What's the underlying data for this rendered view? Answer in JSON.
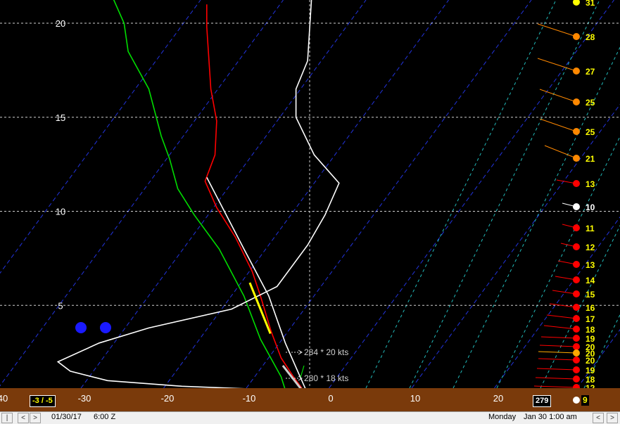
{
  "chart_data": {
    "type": "line",
    "title": "",
    "xlabel": "",
    "ylabel": "",
    "xlim": [
      -40,
      30
    ],
    "ylim": [
      0.5,
      21
    ],
    "x_ticks": [
      "40",
      "-30",
      "-20",
      "-10",
      "0",
      "10",
      "20"
    ],
    "y_ticks": [
      20,
      15,
      10,
      5
    ],
    "grid": true,
    "series": [
      {
        "name": "",
        "color": "#ff0000",
        "points": [
          [
            -15,
            21.0
          ],
          [
            -15,
            19.8
          ],
          [
            -14.5,
            16.5
          ],
          [
            -13.8,
            14.8
          ],
          [
            -14.0,
            13.0
          ],
          [
            -15.2,
            11.6
          ],
          [
            -13.8,
            10.2
          ],
          [
            -11.5,
            8.6
          ],
          [
            -9.5,
            6.8
          ],
          [
            -8.5,
            5.5
          ],
          [
            -7.2,
            3.6
          ],
          [
            -6.0,
            2.2
          ],
          [
            -4.5,
            1.2
          ],
          [
            -3.5,
            0.6
          ]
        ]
      },
      {
        "name": "",
        "color": "#00dd00",
        "points": [
          [
            -26.5,
            21.5
          ],
          [
            -25,
            20.0
          ],
          [
            -24.5,
            18.5
          ],
          [
            -22,
            16.5
          ],
          [
            -20.5,
            14.0
          ],
          [
            -19.5,
            12.8
          ],
          [
            -18.5,
            11.2
          ],
          [
            -16.5,
            9.8
          ],
          [
            -13.5,
            8.0
          ],
          [
            -10.5,
            5.5
          ],
          [
            -8.5,
            3.2
          ],
          [
            -6.0,
            1.2
          ],
          [
            -5.5,
            0.5
          ]
        ]
      },
      {
        "name": "",
        "color": "#ffffff",
        "points": [
          [
            -2.3,
            21.5
          ],
          [
            -2.8,
            18.0
          ],
          [
            -4.2,
            16.5
          ],
          [
            -4.2,
            15.0
          ],
          [
            -2.0,
            13.0
          ],
          [
            1.0,
            11.5
          ],
          [
            -0.7,
            9.8
          ],
          [
            -2.8,
            8.2
          ],
          [
            -6.5,
            6.0
          ],
          [
            -12,
            4.8
          ],
          [
            -22,
            3.8
          ],
          [
            -28,
            3.0
          ],
          [
            -33,
            2.0
          ],
          [
            -31.5,
            1.5
          ],
          [
            -27,
            1.0
          ],
          [
            -18,
            0.7
          ],
          [
            -6.5,
            0.5
          ]
        ]
      },
      {
        "name": "",
        "color": "#ffffff",
        "points": [
          [
            -15,
            11.8
          ],
          [
            -10.5,
            8.0
          ],
          [
            -7.5,
            5.5
          ],
          [
            -5.5,
            3.0
          ],
          [
            -4,
            1.5
          ],
          [
            -3,
            0.5
          ]
        ]
      },
      {
        "name": "",
        "color": "#ffff00",
        "points": [
          [
            -9.8,
            6.2
          ],
          [
            -7.3,
            3.5
          ]
        ]
      },
      {
        "name": "",
        "color": "#cccccc",
        "points": [
          [
            -5.8,
            1.8
          ],
          [
            -3.5,
            0.5
          ]
        ]
      }
    ],
    "annotations": [
      "284 * 20 kts",
      "280 * 18 kts"
    ]
  },
  "side_panel": {
    "barb_values": [
      "31",
      "28",
      "27",
      "25",
      "25",
      "21",
      "13",
      "10",
      "11",
      "12",
      "13",
      "14",
      "15",
      "16",
      "17",
      "18",
      "19",
      "20",
      "20",
      "20",
      "19",
      "18",
      "12",
      "9"
    ]
  },
  "axis_bar": {
    "left_box": "-3 / -5",
    "right_box": "279"
  },
  "status_bar": {
    "date": "01/30/17",
    "time": "6:00 Z",
    "day": "Monday",
    "datetime": "Jan 30  1:00 am"
  },
  "colors": {
    "accent_axis_bar": "#7a3a0b",
    "isotherm": "#2233dd",
    "mixing_ratio": "#22bbbb",
    "temperature": "#ff0000",
    "dewpoint": "#00dd00",
    "label_yellow": "#ffff00",
    "dot_orange": "#ff8800",
    "dot_red": "#ff0000"
  }
}
